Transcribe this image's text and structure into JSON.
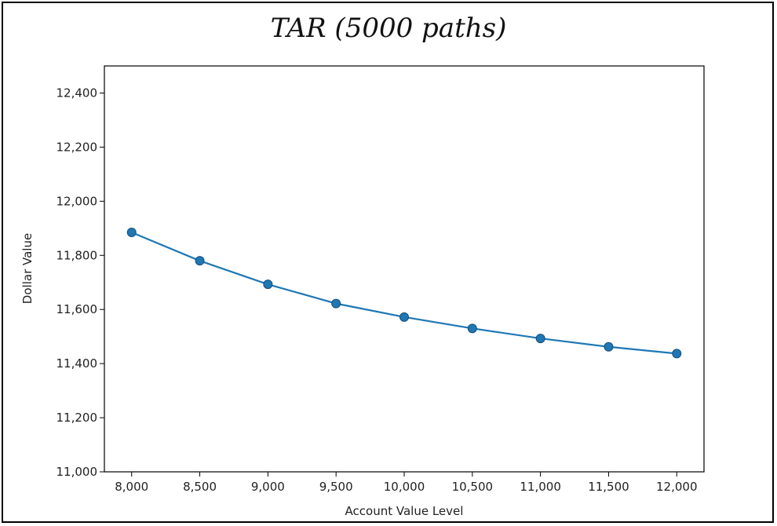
{
  "chart_data": {
    "type": "line",
    "title": "TAR (5000 paths)",
    "xlabel": "Account Value Level",
    "ylabel": "Dollar Value",
    "x": [
      8000,
      8500,
      9000,
      9500,
      10000,
      10500,
      11000,
      11500,
      12000
    ],
    "x_tick_labels": [
      "8,000",
      "8,500",
      "9,000",
      "9,500",
      "10,000",
      "10,500",
      "11,000",
      "11,500",
      "12,000"
    ],
    "y_tick_values": [
      11000,
      11200,
      11400,
      11600,
      11800,
      12000,
      12200,
      12400
    ],
    "y_tick_labels": [
      "11,000",
      "11,200",
      "11,400",
      "11,600",
      "11,800",
      "12,000",
      "12,200",
      "12,400"
    ],
    "xlim": [
      7800,
      12200
    ],
    "ylim": [
      11000,
      12500
    ],
    "series": [
      {
        "values": [
          11885,
          11780,
          11693,
          11622,
          11572,
          11530,
          11493,
          11462,
          11437
        ],
        "color": "#1f77b4"
      }
    ],
    "grid": false
  }
}
